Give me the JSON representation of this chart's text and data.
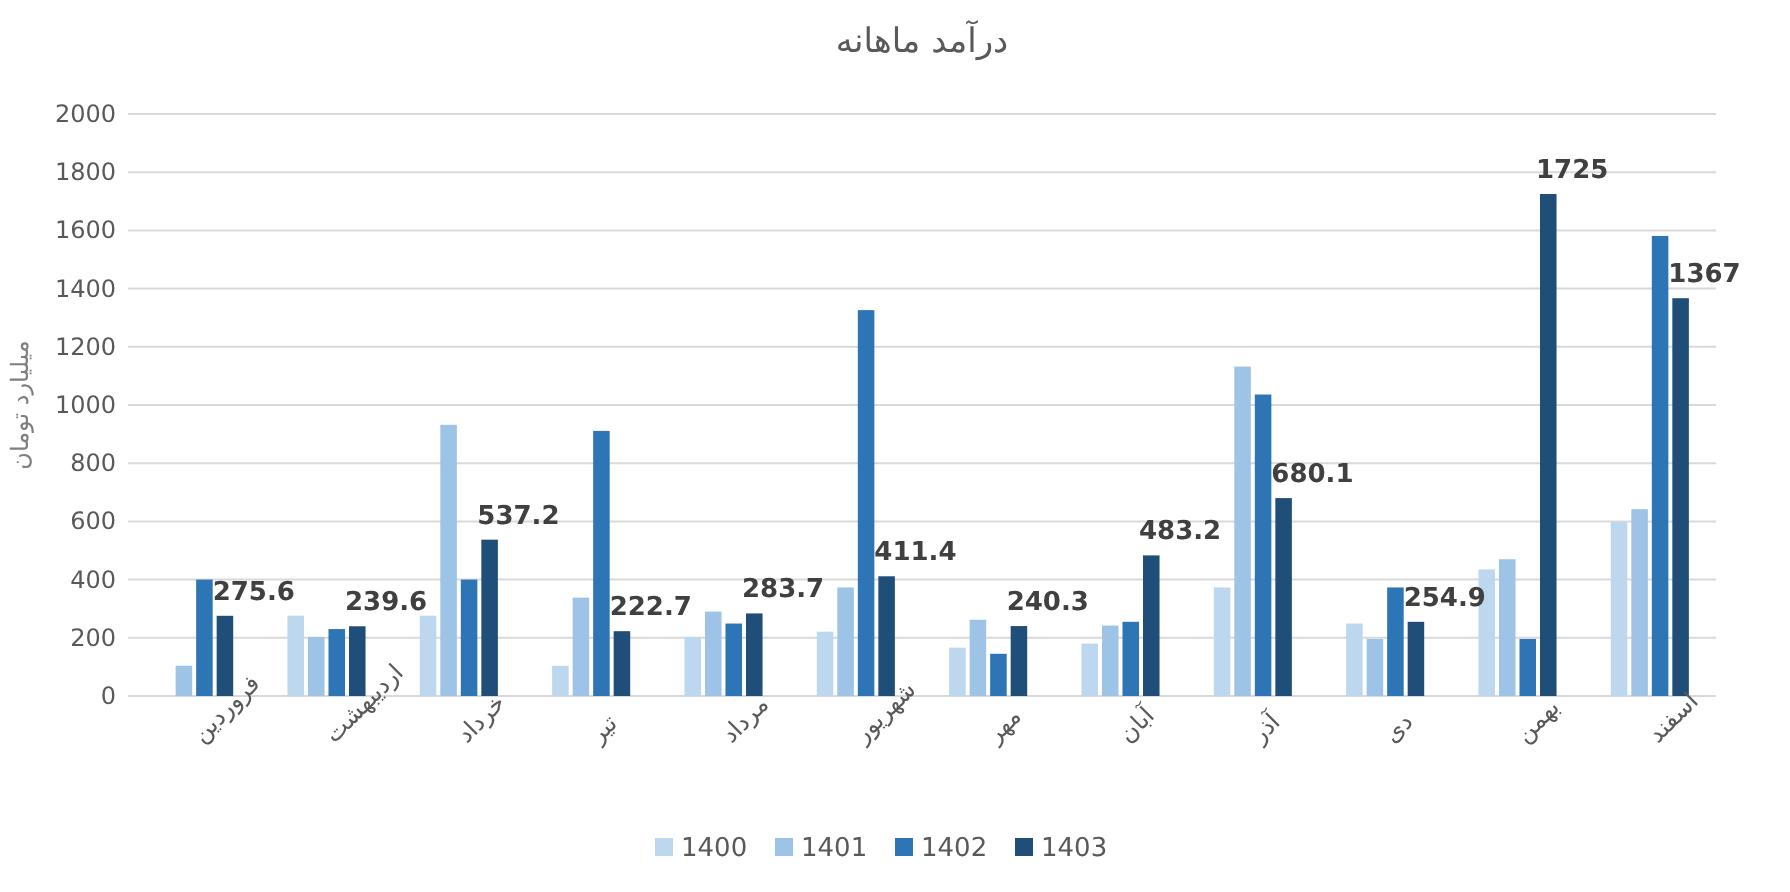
{
  "chart_data": {
    "type": "bar",
    "title": "درآمد ماهانه",
    "ylabel": "میلیارد تومان",
    "categories": [
      "فروردین",
      "اردیبهشت",
      "خرداد",
      "تیر",
      "مرداد",
      "شهریور",
      "مهر",
      "آبان",
      "آذر",
      "دی",
      "بهمن",
      "اسفند"
    ],
    "series": [
      {
        "name": "1400",
        "color": "#bdd7ee",
        "values": [
          null,
          276,
          276,
          104,
          203,
          221,
          166,
          180,
          373,
          249,
          435,
          598
        ]
      },
      {
        "name": "1401",
        "color": "#9dc3e6",
        "values": [
          104,
          203,
          932,
          338,
          290,
          373,
          262,
          242,
          1132,
          196,
          470,
          642
        ]
      },
      {
        "name": "1402",
        "color": "#2e75b6",
        "values": [
          400,
          230,
          400,
          911,
          249,
          1326,
          145,
          255,
          1036,
          373,
          196,
          1581
        ]
      },
      {
        "name": "1403",
        "color": "#1f4e79",
        "values": [
          275.6,
          239.6,
          537.2,
          222.7,
          283.7,
          411.4,
          240.3,
          483.2,
          680.1,
          254.9,
          1725,
          1367
        ],
        "value_labels": [
          "275.6",
          "239.6",
          "537.2",
          "222.7",
          "283.7",
          "411.4",
          "240.3",
          "483.2",
          "680.1",
          "254.9",
          "1725",
          "1367"
        ]
      }
    ],
    "ylim": [
      0,
      2000
    ],
    "yticks": [
      0,
      200,
      400,
      600,
      800,
      1000,
      1200,
      1400,
      1600,
      1800,
      2000
    ],
    "grid": "y",
    "legend": "bottom"
  }
}
